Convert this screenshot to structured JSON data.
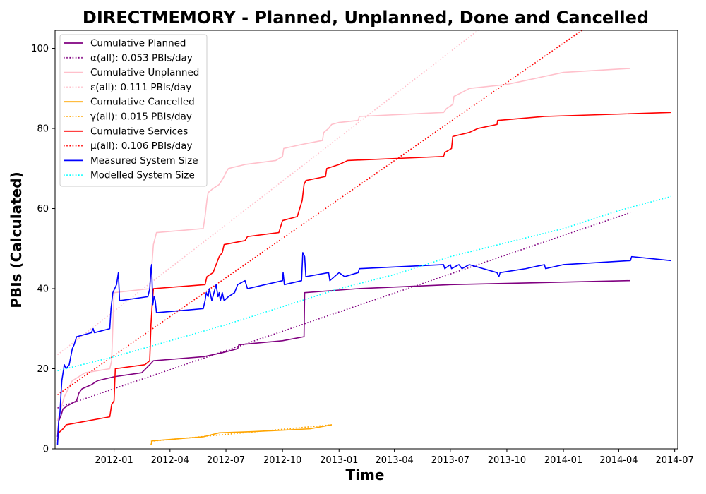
{
  "chart_data": {
    "type": "line",
    "title": "DIRECTMEMORY - Planned, Unplanned, Done  and Cancelled",
    "xlabel": "Time",
    "ylabel": "PBIs (Calculated)",
    "xlim": [
      "2011-09-27",
      "2014-07-06"
    ],
    "ylim": [
      0,
      104.5
    ],
    "x_ticks": [
      "2012-01",
      "2012-04",
      "2012-07",
      "2012-10",
      "2013-01",
      "2013-04",
      "2013-07",
      "2013-10",
      "2014-01",
      "2014-04",
      "2014-07"
    ],
    "y_ticks": [
      0,
      20,
      40,
      60,
      80,
      100
    ],
    "grid": false,
    "legend_position": "upper-left",
    "series": [
      {
        "name": "Cumulative Planned",
        "color": "#800080",
        "style": "solid",
        "points": [
          [
            "2011-10-01",
            3
          ],
          [
            "2011-10-03",
            7
          ],
          [
            "2011-10-06",
            8
          ],
          [
            "2011-10-10",
            10
          ],
          [
            "2011-10-20",
            11
          ],
          [
            "2011-11-01",
            12
          ],
          [
            "2011-11-05",
            14
          ],
          [
            "2011-11-10",
            15
          ],
          [
            "2011-11-25",
            16
          ],
          [
            "2011-12-05",
            17
          ],
          [
            "2012-01-01",
            18
          ],
          [
            "2012-02-15",
            19
          ],
          [
            "2012-02-28",
            21
          ],
          [
            "2012-03-05",
            22
          ],
          [
            "2012-05-25",
            23
          ],
          [
            "2012-06-25",
            24
          ],
          [
            "2012-07-20",
            25
          ],
          [
            "2012-07-22",
            26
          ],
          [
            "2012-10-01",
            27
          ],
          [
            "2012-11-05",
            28
          ],
          [
            "2012-11-06",
            39
          ],
          [
            "2013-02-01",
            40
          ],
          [
            "2013-07-01",
            41
          ],
          [
            "2014-04-20",
            42
          ]
        ]
      },
      {
        "name": "α(all): 0.053 PBIs/day",
        "color": "#800080",
        "style": "dotted",
        "points": [
          [
            "2011-10-01",
            10.2
          ],
          [
            "2014-04-20",
            59
          ]
        ]
      },
      {
        "name": "Cumulative Unplanned",
        "color": "#ffc0cb",
        "style": "solid",
        "points": [
          [
            "2011-10-01",
            7
          ],
          [
            "2011-10-12",
            13
          ],
          [
            "2011-10-25",
            17
          ],
          [
            "2011-11-15",
            19
          ],
          [
            "2011-12-25",
            20
          ],
          [
            "2011-12-28",
            22
          ],
          [
            "2012-01-01",
            39
          ],
          [
            "2012-02-28",
            40
          ],
          [
            "2012-03-02",
            45
          ],
          [
            "2012-03-05",
            51
          ],
          [
            "2012-03-10",
            54
          ],
          [
            "2012-05-25",
            55
          ],
          [
            "2012-05-28",
            58
          ],
          [
            "2012-05-31",
            62
          ],
          [
            "2012-06-02",
            64
          ],
          [
            "2012-06-10",
            65
          ],
          [
            "2012-06-20",
            66
          ],
          [
            "2012-06-24",
            67
          ],
          [
            "2012-06-28",
            68
          ],
          [
            "2012-07-01",
            69
          ],
          [
            "2012-07-05",
            70
          ],
          [
            "2012-08-01",
            71
          ],
          [
            "2012-09-20",
            72
          ],
          [
            "2012-10-01",
            73
          ],
          [
            "2012-10-03",
            75
          ],
          [
            "2012-11-01",
            76
          ],
          [
            "2012-12-05",
            77
          ],
          [
            "2012-12-07",
            79
          ],
          [
            "2012-12-15",
            80
          ],
          [
            "2012-12-20",
            81
          ],
          [
            "2013-01-01",
            81.5
          ],
          [
            "2013-02-01",
            82
          ],
          [
            "2013-02-03",
            83
          ],
          [
            "2013-06-20",
            84
          ],
          [
            "2013-06-25",
            85
          ],
          [
            "2013-07-05",
            86
          ],
          [
            "2013-07-07",
            88
          ],
          [
            "2013-07-20",
            89
          ],
          [
            "2013-08-01",
            90
          ],
          [
            "2013-10-01",
            91
          ],
          [
            "2013-11-01",
            92
          ],
          [
            "2013-12-01",
            93
          ],
          [
            "2014-01-01",
            94
          ],
          [
            "2014-04-20",
            95
          ]
        ]
      },
      {
        "name": "ε(all): 0.111 PBIs/day",
        "color": "#ffc0cb",
        "style": "dotted",
        "points": [
          [
            "2011-10-01",
            23.5
          ],
          [
            "2013-08-15",
            104.5
          ]
        ]
      },
      {
        "name": "Cumulative Cancelled",
        "color": "#ffa500",
        "style": "solid",
        "points": [
          [
            "2012-03-01",
            1
          ],
          [
            "2012-03-03",
            2
          ],
          [
            "2012-05-25",
            3
          ],
          [
            "2012-06-20",
            4
          ],
          [
            "2012-08-15",
            4.3
          ],
          [
            "2012-11-15",
            5
          ],
          [
            "2012-12-20",
            6
          ]
        ]
      },
      {
        "name": "γ(all): 0.015 PBIs/day",
        "color": "#ffa500",
        "style": "dotted",
        "points": [
          [
            "2012-03-01",
            1.9
          ],
          [
            "2012-12-20",
            6.0
          ]
        ]
      },
      {
        "name": "Cumulative Services",
        "color": "#ff0000",
        "style": "solid",
        "points": [
          [
            "2011-10-01",
            2
          ],
          [
            "2011-10-03",
            4
          ],
          [
            "2011-10-10",
            5
          ],
          [
            "2011-10-15",
            6
          ],
          [
            "2011-12-25",
            8
          ],
          [
            "2011-12-28",
            11
          ],
          [
            "2012-01-01",
            12
          ],
          [
            "2012-01-03",
            20
          ],
          [
            "2012-02-20",
            21
          ],
          [
            "2012-02-28",
            22
          ],
          [
            "2012-03-01",
            31
          ],
          [
            "2012-03-03",
            36
          ],
          [
            "2012-03-05",
            40
          ],
          [
            "2012-05-28",
            41
          ],
          [
            "2012-05-31",
            43
          ],
          [
            "2012-06-10",
            44
          ],
          [
            "2012-06-15",
            46
          ],
          [
            "2012-06-20",
            48
          ],
          [
            "2012-06-25",
            49
          ],
          [
            "2012-06-28",
            51
          ],
          [
            "2012-08-01",
            52
          ],
          [
            "2012-08-05",
            53
          ],
          [
            "2012-09-25",
            54
          ],
          [
            "2012-10-01",
            57
          ],
          [
            "2012-10-25",
            58
          ],
          [
            "2012-10-31",
            61
          ],
          [
            "2012-11-02",
            62
          ],
          [
            "2012-11-05",
            66
          ],
          [
            "2012-11-08",
            67
          ],
          [
            "2012-12-10",
            68
          ],
          [
            "2012-12-12",
            70
          ],
          [
            "2013-01-01",
            71
          ],
          [
            "2013-01-15",
            72
          ],
          [
            "2013-06-20",
            73
          ],
          [
            "2013-06-22",
            74
          ],
          [
            "2013-07-03",
            75
          ],
          [
            "2013-07-05",
            78
          ],
          [
            "2013-08-01",
            79
          ],
          [
            "2013-08-15",
            80
          ],
          [
            "2013-09-15",
            81
          ],
          [
            "2013-09-16",
            82
          ],
          [
            "2013-12-01",
            83
          ],
          [
            "2014-06-25",
            84
          ]
        ]
      },
      {
        "name": "μ(all): 0.106 PBIs/day",
        "color": "#ff0000",
        "style": "dotted",
        "points": [
          [
            "2011-10-01",
            13.5
          ],
          [
            "2014-01-31",
            104.5
          ]
        ]
      },
      {
        "name": "Measured System Size",
        "color": "#0000ff",
        "style": "solid",
        "points": [
          [
            "2011-10-01",
            1
          ],
          [
            "2011-10-03",
            7
          ],
          [
            "2011-10-05",
            9
          ],
          [
            "2011-10-06",
            12
          ],
          [
            "2011-10-08",
            17
          ],
          [
            "2011-10-10",
            19
          ],
          [
            "2011-10-12",
            21
          ],
          [
            "2011-10-15",
            20
          ],
          [
            "2011-10-20",
            21
          ],
          [
            "2011-10-25",
            25
          ],
          [
            "2011-10-28",
            26
          ],
          [
            "2011-11-01",
            28
          ],
          [
            "2011-11-25",
            29
          ],
          [
            "2011-11-28",
            30
          ],
          [
            "2011-11-30",
            29
          ],
          [
            "2011-12-25",
            30
          ],
          [
            "2011-12-27",
            35
          ],
          [
            "2011-12-30",
            39
          ],
          [
            "2012-01-05",
            41
          ],
          [
            "2012-01-08",
            44
          ],
          [
            "2012-01-10",
            37
          ],
          [
            "2012-02-25",
            38
          ],
          [
            "2012-02-28",
            40
          ],
          [
            "2012-03-01",
            45
          ],
          [
            "2012-03-02",
            46
          ],
          [
            "2012-03-04",
            36
          ],
          [
            "2012-03-06",
            38
          ],
          [
            "2012-03-08",
            37
          ],
          [
            "2012-03-10",
            34
          ],
          [
            "2012-05-25",
            35
          ],
          [
            "2012-05-28",
            37
          ],
          [
            "2012-05-30",
            39
          ],
          [
            "2012-06-02",
            38
          ],
          [
            "2012-06-04",
            40
          ],
          [
            "2012-06-08",
            37
          ],
          [
            "2012-06-15",
            41
          ],
          [
            "2012-06-18",
            38
          ],
          [
            "2012-06-20",
            39
          ],
          [
            "2012-06-22",
            37
          ],
          [
            "2012-06-25",
            39
          ],
          [
            "2012-06-28",
            37
          ],
          [
            "2012-07-05",
            38
          ],
          [
            "2012-07-15",
            39
          ],
          [
            "2012-07-20",
            41
          ],
          [
            "2012-08-01",
            42
          ],
          [
            "2012-08-05",
            40
          ],
          [
            "2012-10-01",
            42
          ],
          [
            "2012-10-02",
            44
          ],
          [
            "2012-10-04",
            41
          ],
          [
            "2012-11-01",
            42
          ],
          [
            "2012-11-03",
            49
          ],
          [
            "2012-11-06",
            48
          ],
          [
            "2012-11-08",
            43
          ],
          [
            "2012-12-15",
            44
          ],
          [
            "2012-12-17",
            42
          ],
          [
            "2013-01-01",
            44
          ],
          [
            "2013-01-10",
            43
          ],
          [
            "2013-02-01",
            44
          ],
          [
            "2013-02-03",
            45
          ],
          [
            "2013-06-20",
            46
          ],
          [
            "2013-06-22",
            45
          ],
          [
            "2013-07-01",
            46
          ],
          [
            "2013-07-03",
            45
          ],
          [
            "2013-07-15",
            46
          ],
          [
            "2013-07-20",
            45
          ],
          [
            "2013-08-01",
            46
          ],
          [
            "2013-09-15",
            44
          ],
          [
            "2013-09-18",
            43
          ],
          [
            "2013-09-20",
            44
          ],
          [
            "2013-11-01",
            45
          ],
          [
            "2013-12-01",
            46
          ],
          [
            "2013-12-03",
            45
          ],
          [
            "2014-01-01",
            46
          ],
          [
            "2014-04-20",
            47
          ],
          [
            "2014-04-22",
            48
          ],
          [
            "2014-06-25",
            47
          ]
        ]
      },
      {
        "name": "Modelled System Size",
        "color": "#00ffff",
        "style": "dotted",
        "points": [
          [
            "2011-10-01",
            19.5
          ],
          [
            "2012-01-01",
            23
          ],
          [
            "2012-04-01",
            27
          ],
          [
            "2012-07-01",
            31
          ],
          [
            "2012-10-01",
            35.5
          ],
          [
            "2013-01-01",
            40
          ],
          [
            "2013-04-01",
            43.5
          ],
          [
            "2013-07-01",
            48
          ],
          [
            "2013-10-01",
            51.5
          ],
          [
            "2014-01-01",
            55
          ],
          [
            "2014-04-01",
            59.5
          ],
          [
            "2014-06-25",
            63
          ]
        ]
      }
    ]
  }
}
